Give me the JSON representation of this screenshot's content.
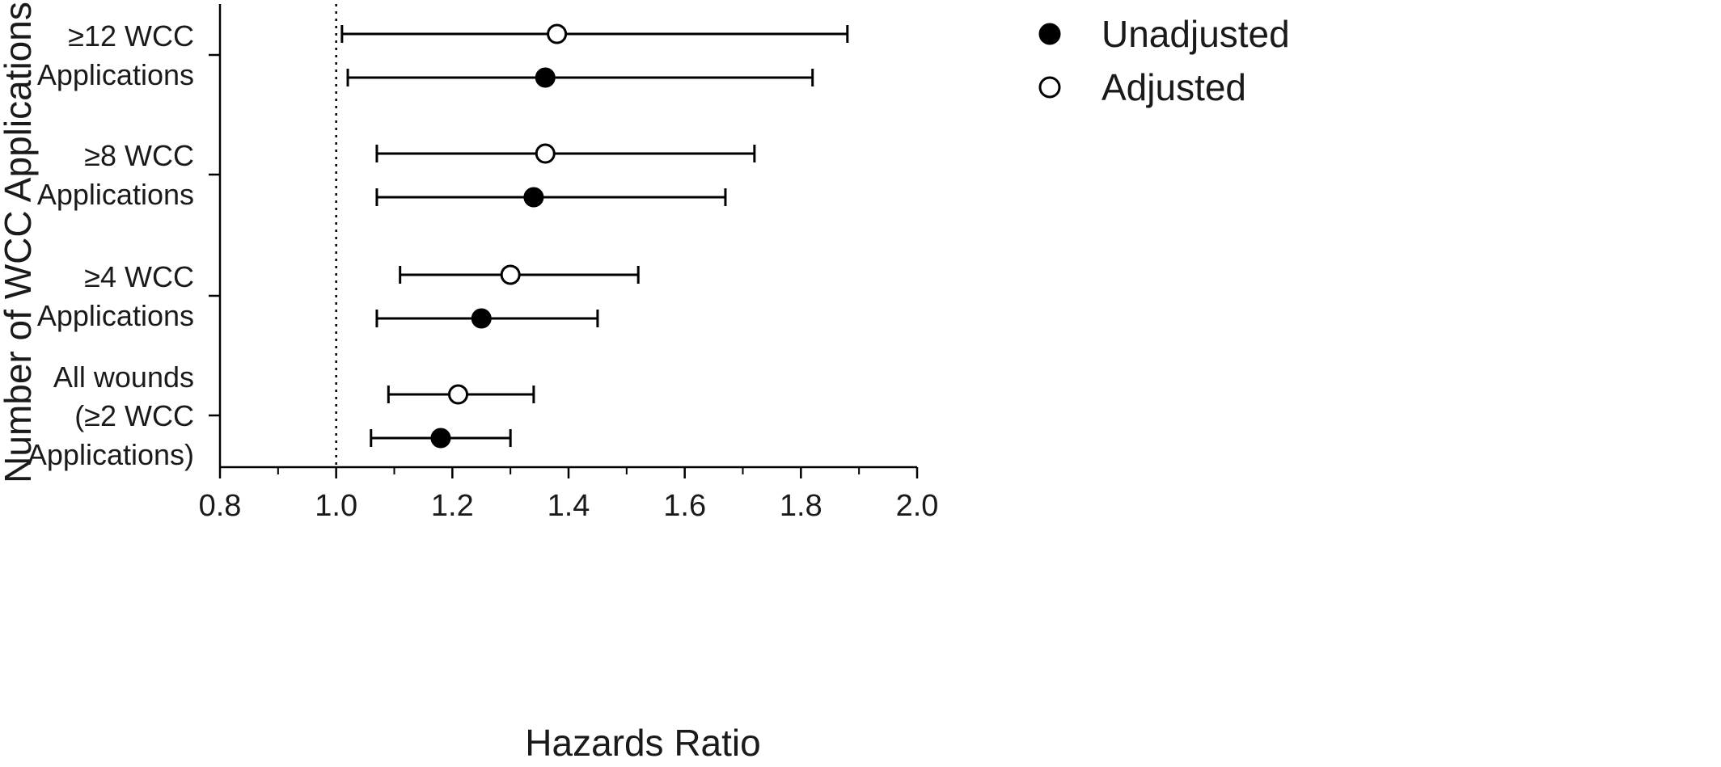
{
  "chart_data": {
    "type": "forest",
    "title": "",
    "xlabel": "Hazards Ratio",
    "ylabel": "Number of WCC Applications",
    "xlim": [
      0.8,
      2.0
    ],
    "x_ticks": [
      "0.8",
      "1.0",
      "1.2",
      "1.4",
      "1.6",
      "1.8",
      "2.0"
    ],
    "reference_line": 1.0,
    "categories": [
      {
        "label_lines": [
          "≥12 WCC",
          "Applications"
        ]
      },
      {
        "label_lines": [
          "≥8 WCC",
          "Applications"
        ]
      },
      {
        "label_lines": [
          "≥4 WCC",
          "Applications"
        ]
      },
      {
        "label_lines": [
          "All wounds",
          "(≥2 WCC",
          "Applications)"
        ]
      }
    ],
    "series": [
      {
        "name": "Unadjusted",
        "marker": "filled-circle",
        "points": [
          {
            "category": 0,
            "hr": 1.36,
            "ci": [
              1.02,
              1.82
            ]
          },
          {
            "category": 1,
            "hr": 1.34,
            "ci": [
              1.07,
              1.67
            ]
          },
          {
            "category": 2,
            "hr": 1.25,
            "ci": [
              1.07,
              1.45
            ]
          },
          {
            "category": 3,
            "hr": 1.18,
            "ci": [
              1.06,
              1.3
            ]
          }
        ]
      },
      {
        "name": "Adjusted",
        "marker": "open-circle",
        "points": [
          {
            "category": 0,
            "hr": 1.38,
            "ci": [
              1.01,
              1.88
            ]
          },
          {
            "category": 1,
            "hr": 1.36,
            "ci": [
              1.07,
              1.72
            ]
          },
          {
            "category": 2,
            "hr": 1.3,
            "ci": [
              1.11,
              1.52
            ]
          },
          {
            "category": 3,
            "hr": 1.21,
            "ci": [
              1.09,
              1.34
            ]
          }
        ]
      }
    ],
    "legend_position": "top-right",
    "grid": false,
    "colors": {
      "ink": "#000000",
      "open_fill": "#ffffff"
    }
  }
}
